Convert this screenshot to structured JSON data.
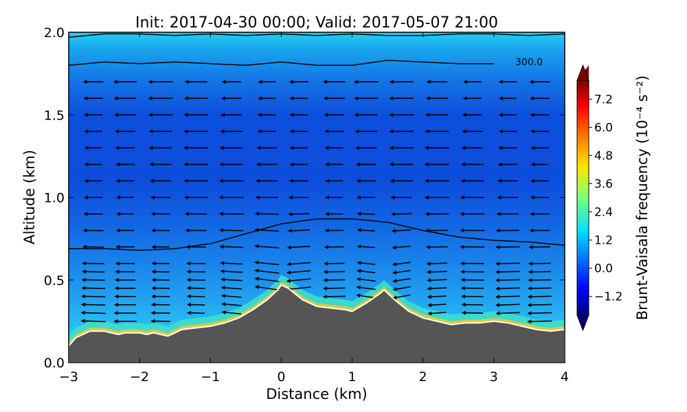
{
  "chart_data": {
    "type": "heatmap",
    "title": "Init: 2017-04-30 00:00; Valid: 2017-05-07 21:00",
    "xlabel": "Distance (km)",
    "ylabel": "Altitude (km)",
    "xlim": [
      -3,
      4
    ],
    "ylim": [
      0,
      2.0
    ],
    "x_ticks": [
      -3,
      -2,
      -1,
      0,
      1,
      2,
      3,
      4
    ],
    "x_tick_labels": [
      "−3",
      "−2",
      "−1",
      "0",
      "1",
      "2",
      "3",
      "4"
    ],
    "y_ticks": [
      0.0,
      0.5,
      1.0,
      1.5,
      2.0
    ],
    "y_tick_labels": [
      "0.0",
      "0.5",
      "1.0",
      "1.5",
      "2.0"
    ],
    "colorbar": {
      "label": "Brunt-Vaisala frequency (10⁻⁴ s⁻²)",
      "ticks": [
        -1.2,
        0.0,
        1.2,
        2.4,
        3.6,
        4.8,
        6.0,
        7.2
      ],
      "tick_labels": [
        "−1.2",
        "0.0",
        "1.2",
        "2.4",
        "3.6",
        "4.8",
        "6.0",
        "7.2"
      ],
      "range": [
        -2.0,
        8.0
      ],
      "colormap": "jet",
      "extend": "both"
    },
    "contour_label": "300.0",
    "terrain": {
      "x": [
        -3.0,
        -2.9,
        -2.8,
        -2.7,
        -2.5,
        -2.3,
        -2.2,
        -2.0,
        -1.9,
        -1.8,
        -1.7,
        -1.6,
        -1.5,
        -1.4,
        -1.2,
        -1.0,
        -0.8,
        -0.6,
        -0.4,
        -0.2,
        -0.05,
        0.0,
        0.1,
        0.3,
        0.5,
        0.7,
        0.9,
        1.0,
        1.2,
        1.4,
        1.45,
        1.6,
        1.8,
        2.0,
        2.2,
        2.4,
        2.6,
        2.8,
        3.0,
        3.2,
        3.4,
        3.6,
        3.8,
        4.0
      ],
      "alt": [
        0.1,
        0.15,
        0.17,
        0.19,
        0.19,
        0.17,
        0.18,
        0.18,
        0.17,
        0.18,
        0.17,
        0.16,
        0.18,
        0.2,
        0.21,
        0.22,
        0.24,
        0.27,
        0.32,
        0.38,
        0.44,
        0.47,
        0.45,
        0.38,
        0.34,
        0.33,
        0.32,
        0.31,
        0.36,
        0.42,
        0.44,
        0.38,
        0.31,
        0.27,
        0.25,
        0.23,
        0.24,
        0.24,
        0.25,
        0.24,
        0.22,
        0.2,
        0.19,
        0.2
      ]
    },
    "isentropes": [
      {
        "x": [
          -3.0,
          -2.5,
          -2.0,
          -1.5,
          -1.0,
          -0.5,
          0.0,
          0.5,
          1.0,
          1.5,
          2.0,
          2.5,
          3.0,
          3.5,
          4.0
        ],
        "alt": [
          0.69,
          0.69,
          0.68,
          0.69,
          0.72,
          0.78,
          0.84,
          0.87,
          0.87,
          0.85,
          0.8,
          0.76,
          0.74,
          0.73,
          0.71
        ]
      },
      {
        "x": [
          -3.0,
          -2.5,
          -2.0,
          -1.5,
          -1.0,
          -0.5,
          0.0,
          0.5,
          1.0,
          1.5,
          2.0,
          2.5,
          3.0
        ],
        "alt": [
          1.8,
          1.82,
          1.81,
          1.82,
          1.81,
          1.8,
          1.82,
          1.8,
          1.8,
          1.83,
          1.82,
          1.81,
          1.81
        ]
      },
      {
        "x": [
          -3.0,
          -2.5,
          -2.0,
          -1.5,
          -1.0,
          -0.5,
          0.0,
          0.5,
          1.0,
          1.5,
          2.0,
          2.5,
          3.0,
          3.5,
          4.0
        ],
        "alt": [
          1.97,
          1.99,
          1.99,
          1.98,
          1.99,
          1.98,
          1.99,
          1.98,
          1.99,
          1.98,
          1.98,
          1.99,
          1.99,
          1.98,
          1.99
        ]
      }
    ],
    "wind_vectors": {
      "x_columns": [
        -2.65,
        -2.2,
        -1.7,
        -1.2,
        -0.7,
        -0.2,
        0.25,
        0.75,
        1.2,
        1.7,
        2.2,
        2.7,
        3.2,
        3.65
      ],
      "altitudes": [
        0.25,
        0.3,
        0.35,
        0.4,
        0.45,
        0.5,
        0.55,
        0.6,
        0.7,
        0.8,
        0.9,
        1.0,
        1.1,
        1.2,
        1.3,
        1.4,
        1.5,
        1.6,
        1.7
      ],
      "direction": "westward"
    }
  }
}
